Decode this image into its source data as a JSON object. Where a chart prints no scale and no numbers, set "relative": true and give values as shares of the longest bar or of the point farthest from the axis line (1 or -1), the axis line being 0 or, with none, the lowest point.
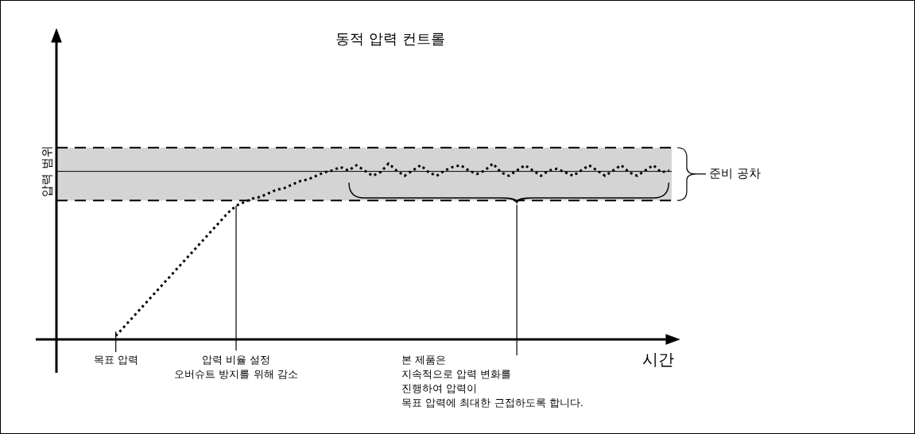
{
  "chart_data": {
    "type": "line",
    "title": "동적 압력 컨트롤",
    "xlabel": "시간",
    "ylabel": "압력 범위",
    "relative": true,
    "line_style": "dotted",
    "categories": [
      null,
      null,
      null,
      null,
      null,
      null,
      null,
      null,
      null,
      null,
      null,
      null,
      null,
      null,
      null,
      null,
      null,
      null,
      null,
      null,
      null,
      null,
      null,
      null,
      null,
      null,
      null,
      null,
      null,
      null,
      null,
      null,
      null,
      null,
      null,
      null,
      null,
      null,
      null,
      null,
      null,
      null,
      null,
      null,
      null,
      null,
      null,
      null,
      null,
      null,
      null,
      null,
      null,
      null,
      null,
      null,
      null,
      null,
      null,
      null,
      null,
      null,
      null,
      null,
      null,
      null,
      null,
      null,
      null,
      null
    ],
    "series": [
      {
        "color": "#000000",
        "values": [
          0.02,
          0.07,
          0.12,
          0.17,
          0.22,
          0.27,
          0.32,
          0.37,
          0.42,
          0.47,
          0.52,
          0.57,
          0.62,
          0.67,
          0.72,
          0.76,
          0.78,
          0.8,
          0.81,
          0.83,
          0.85,
          0.86,
          0.88,
          0.9,
          0.91,
          0.93,
          0.95,
          0.96,
          0.98,
          0.96,
          0.99,
          0.96,
          0.93,
          0.95,
          1.0,
          0.96,
          0.93,
          0.96,
          0.99,
          0.95,
          0.93,
          0.96,
          0.98,
          0.99,
          0.96,
          0.94,
          0.96,
          1.0,
          0.95,
          0.93,
          0.96,
          0.99,
          0.96,
          0.93,
          0.96,
          0.97,
          0.95,
          0.93,
          0.96,
          0.99,
          0.96,
          0.93,
          0.96,
          0.99,
          0.95,
          0.93,
          0.96,
          0.99,
          0.95,
          0.96
        ]
      }
    ],
    "bands": [
      {
        "axis": "y",
        "from": 0.79,
        "to": 1.09,
        "color": "#d4d4d4"
      }
    ],
    "ref_lines": [
      {
        "axis": "y",
        "value": 0.955,
        "color": "#000000"
      },
      {
        "axis": "y",
        "value": 1.09,
        "color": "#000000",
        "line_style": "dashed"
      },
      {
        "axis": "y",
        "value": 0.79,
        "color": "#000000",
        "line_style": "dashed"
      }
    ],
    "annotations": [
      "준비 공차",
      "목표 압력",
      "압력 비율 설정\n오버슈트 방지를 위해 감소",
      "본 제품은\n지속적으로 압력 변화를\n진행하여 압력이\n목표 압력에 최대한 근접하도록 합니다."
    ]
  }
}
